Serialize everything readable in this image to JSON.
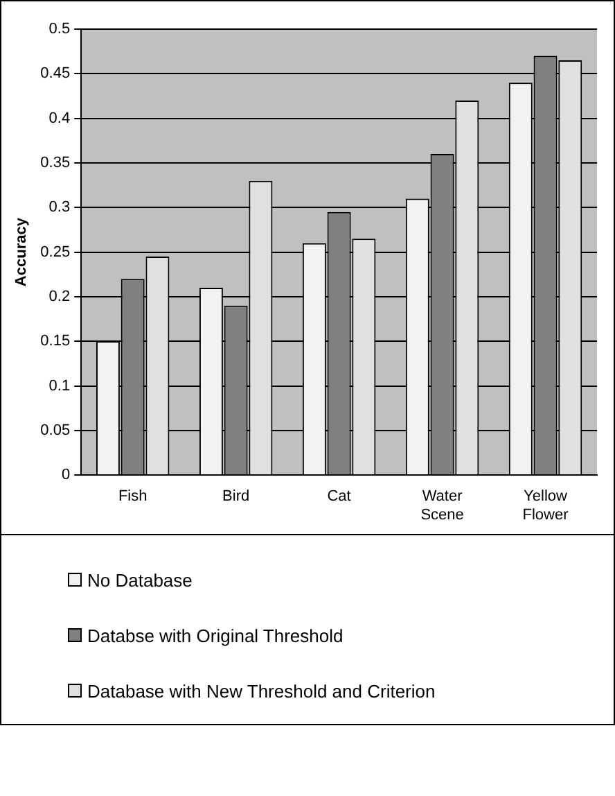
{
  "chart_data": {
    "type": "bar",
    "ylabel": "Accuracy",
    "categories": [
      "Fish",
      "Bird",
      "Cat",
      "Water Scene",
      "Yellow Flower"
    ],
    "series": [
      {
        "name": "No Database",
        "color": "#f2f2f2",
        "values": [
          0.15,
          0.21,
          0.26,
          0.31,
          0.44
        ]
      },
      {
        "name": "Databse with Original Threshold",
        "color": "#808080",
        "values": [
          0.22,
          0.19,
          0.295,
          0.36,
          0.47
        ]
      },
      {
        "name": "Database with New Threshold and Criterion",
        "color": "#e0e0e0",
        "values": [
          0.245,
          0.33,
          0.265,
          0.42,
          0.465
        ]
      }
    ],
    "ylim": [
      0,
      0.5
    ],
    "yticks": [
      0,
      0.05,
      0.1,
      0.15,
      0.2,
      0.25,
      0.3,
      0.35,
      0.4,
      0.45,
      0.5
    ],
    "grid": "y",
    "legend": "bottom"
  }
}
